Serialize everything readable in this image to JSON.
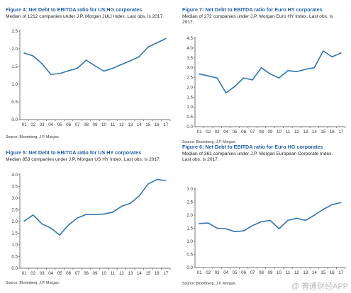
{
  "chart_data": [
    {
      "type": "line",
      "title": "Figure 4: Net Debt to EBITDA ratio for US HG corporates",
      "subtitle": [
        "Median of 1212 companies under J.P. Morgan JULI Index. Last obs. is 2017."
      ],
      "source": "Source: Bloomberg, J.P. Morgan.",
      "categories": [
        "01",
        "02",
        "03",
        "04",
        "05",
        "06",
        "07",
        "08",
        "09",
        "10",
        "11",
        "12",
        "13",
        "14",
        "15",
        "16",
        "17"
      ],
      "values": [
        1.88,
        1.8,
        1.58,
        1.28,
        1.3,
        1.38,
        1.45,
        1.68,
        1.52,
        1.37,
        1.45,
        1.56,
        1.66,
        1.78,
        2.05,
        2.17,
        2.29
      ],
      "ylim": [
        0,
        2.5
      ],
      "yticks": [
        "0.0",
        "0.5",
        "1.0",
        "1.5",
        "2.0",
        "2.5"
      ],
      "grid": false
    },
    {
      "type": "line",
      "title": "Figure 7: Net Debt to EBITDA ratio for Euro HY corporates",
      "subtitle": [
        "Median of 272 companies under J.P. Morgan Euro HY Index. Last obs. is",
        "2017."
      ],
      "source": "Source: Bloomberg, J.P. Morgan.",
      "categories": [
        "01",
        "02",
        "03",
        "04",
        "05",
        "06",
        "07",
        "08",
        "09",
        "10",
        "11",
        "12",
        "13",
        "14",
        "15",
        "16",
        "17"
      ],
      "values": [
        2.68,
        2.58,
        2.48,
        1.72,
        2.05,
        2.48,
        2.38,
        3.0,
        2.68,
        2.48,
        2.85,
        2.8,
        2.92,
        3.0,
        3.85,
        3.55,
        3.75
      ],
      "ylim": [
        0,
        4.5
      ],
      "yticks": [
        "0.0",
        "0.5",
        "1.0",
        "1.5",
        "2.0",
        "2.5",
        "3.0",
        "3.5",
        "4.0",
        "4.5"
      ],
      "grid": false
    },
    {
      "type": "line",
      "title": "Figure 5: Net Debt to EBITDA ratio for US HY corporates",
      "subtitle": [
        "Median 853 companies under J.P. Morgan US HY Index. Last obs. is 2017."
      ],
      "source": "Source: Bloomberg, J.P. Morgan.",
      "categories": [
        "01",
        "02",
        "03",
        "04",
        "05",
        "06",
        "07",
        "08",
        "09",
        "10",
        "11",
        "12",
        "13",
        "14",
        "15",
        "16",
        "17"
      ],
      "values": [
        2.02,
        2.28,
        1.9,
        1.72,
        1.42,
        1.85,
        2.15,
        2.3,
        2.3,
        2.32,
        2.4,
        2.65,
        2.78,
        3.1,
        3.6,
        3.8,
        3.75
      ],
      "ylim": [
        0,
        4.0
      ],
      "yticks": [
        "0.0",
        "0.5",
        "1.0",
        "1.5",
        "2.0",
        "2.5",
        "3.0",
        "3.5",
        "4.0"
      ],
      "grid": false
    },
    {
      "type": "line",
      "title": "Figure 6: Net Debt to EBITDA ratio for Euro HG corporates",
      "subtitle": [
        "Median of 361 companies under J.P. Morgan European Corporate Index.",
        "Last obs. is 2017."
      ],
      "source": "Source: Bloomberg, J.P. Morgan.",
      "categories": [
        "01",
        "02",
        "03",
        "04",
        "05",
        "06",
        "07",
        "08",
        "09",
        "10",
        "11",
        "12",
        "13",
        "14",
        "15",
        "16",
        "17"
      ],
      "values": [
        1.68,
        1.7,
        1.5,
        1.48,
        1.37,
        1.4,
        1.6,
        1.75,
        1.8,
        1.48,
        1.8,
        1.88,
        1.8,
        2.0,
        2.22,
        2.4,
        2.48
      ],
      "ylim": [
        0,
        3.0
      ],
      "yticks": [
        "0.0",
        "0.5",
        "1.0",
        "1.5",
        "2.0",
        "2.5",
        "3.0"
      ],
      "grid": false
    }
  ],
  "watermark": "@ 普通财经APP",
  "colors": {
    "title": "#1f5fa8",
    "line": "#2e75b6",
    "axis": "#444444"
  }
}
